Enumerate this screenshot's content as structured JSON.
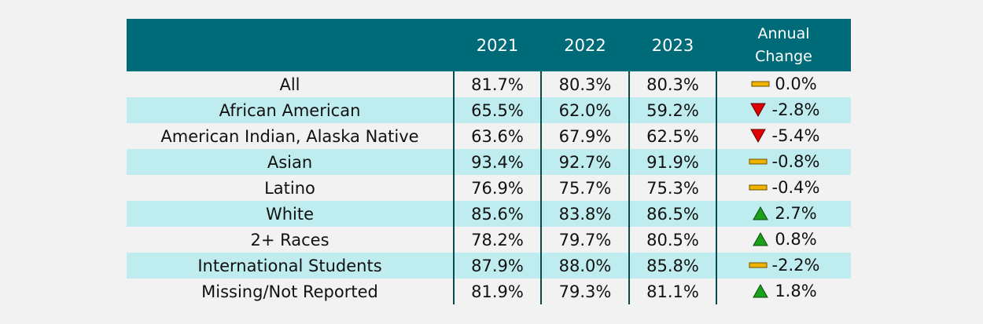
{
  "chart_data": {
    "type": "table",
    "columns": [
      "",
      "2021",
      "2022",
      "2023",
      "Annual\nChange"
    ],
    "rows": [
      {
        "group": "All",
        "values": [
          "81.7%",
          "80.3%",
          "80.3%"
        ],
        "change": "0.0%",
        "trend": "flat"
      },
      {
        "group": "African American",
        "values": [
          "65.5%",
          "62.0%",
          "59.2%"
        ],
        "change": "-2.8%",
        "trend": "down"
      },
      {
        "group": "American Indian, Alaska Native",
        "values": [
          "63.6%",
          "67.9%",
          "62.5%"
        ],
        "change": "-5.4%",
        "trend": "down"
      },
      {
        "group": "Asian",
        "values": [
          "93.4%",
          "92.7%",
          "91.9%"
        ],
        "change": "-0.8%",
        "trend": "flat"
      },
      {
        "group": "Latino",
        "values": [
          "76.9%",
          "75.7%",
          "75.3%"
        ],
        "change": "-0.4%",
        "trend": "flat"
      },
      {
        "group": "White",
        "values": [
          "85.6%",
          "83.8%",
          "86.5%"
        ],
        "change": "2.7%",
        "trend": "up"
      },
      {
        "group": "2+ Races",
        "values": [
          "78.2%",
          "79.7%",
          "80.5%"
        ],
        "change": "0.8%",
        "trend": "up"
      },
      {
        "group": "International Students",
        "values": [
          "87.9%",
          "88.0%",
          "85.8%"
        ],
        "change": "-2.2%",
        "trend": "flat"
      },
      {
        "group": "Missing/Not Reported",
        "values": [
          "81.9%",
          "79.3%",
          "81.1%"
        ],
        "change": "1.8%",
        "trend": "up"
      }
    ]
  },
  "icons": {
    "flat": "dash-icon",
    "down": "down-triangle-icon",
    "up": "up-triangle-icon"
  },
  "colors": {
    "header_bg": "#006b78",
    "row_band": "#bfecee",
    "flat": "#f0b400",
    "down": "#e00000",
    "up": "#1aa01a"
  }
}
